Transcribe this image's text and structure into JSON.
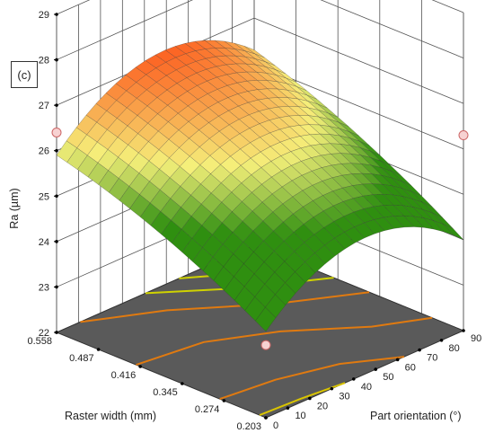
{
  "panel_label": "(c)",
  "chart_data": {
    "type": "surface3d",
    "title": "",
    "xlabel": "Part orientation (°)",
    "ylabel": "Raster width (mm)",
    "zlabel": "Ra (µm)",
    "x_ticks": [
      "0",
      "10",
      "20",
      "30",
      "40",
      "50",
      "60",
      "70",
      "80",
      "90"
    ],
    "y_ticks": [
      "0.203",
      "0.274",
      "0.345",
      "0.416",
      "0.487",
      "0.558"
    ],
    "z_ticks": [
      "22",
      "23",
      "24",
      "25",
      "26",
      "27",
      "28",
      "29"
    ],
    "xlim": [
      0,
      90
    ],
    "ylim": [
      0.203,
      0.558
    ],
    "zlim": [
      22,
      29
    ],
    "design_points": [
      {
        "x": 0,
        "y": 0.558,
        "z": 26.4
      },
      {
        "x": 90,
        "y": 0.558,
        "z": 27.8
      },
      {
        "x": 0,
        "y": 0.203,
        "z": 23.6
      },
      {
        "x": 90,
        "y": 0.203,
        "z": 26.3
      }
    ],
    "contour_colors": [
      "#d9c400",
      "#e07a10",
      "#cfd200",
      "#34c400"
    ],
    "floor_color": "#5a5a5a",
    "surface_colors": {
      "low": "#2f8f10",
      "mid": "#f5ef7a",
      "high": "#ff2a00"
    }
  }
}
